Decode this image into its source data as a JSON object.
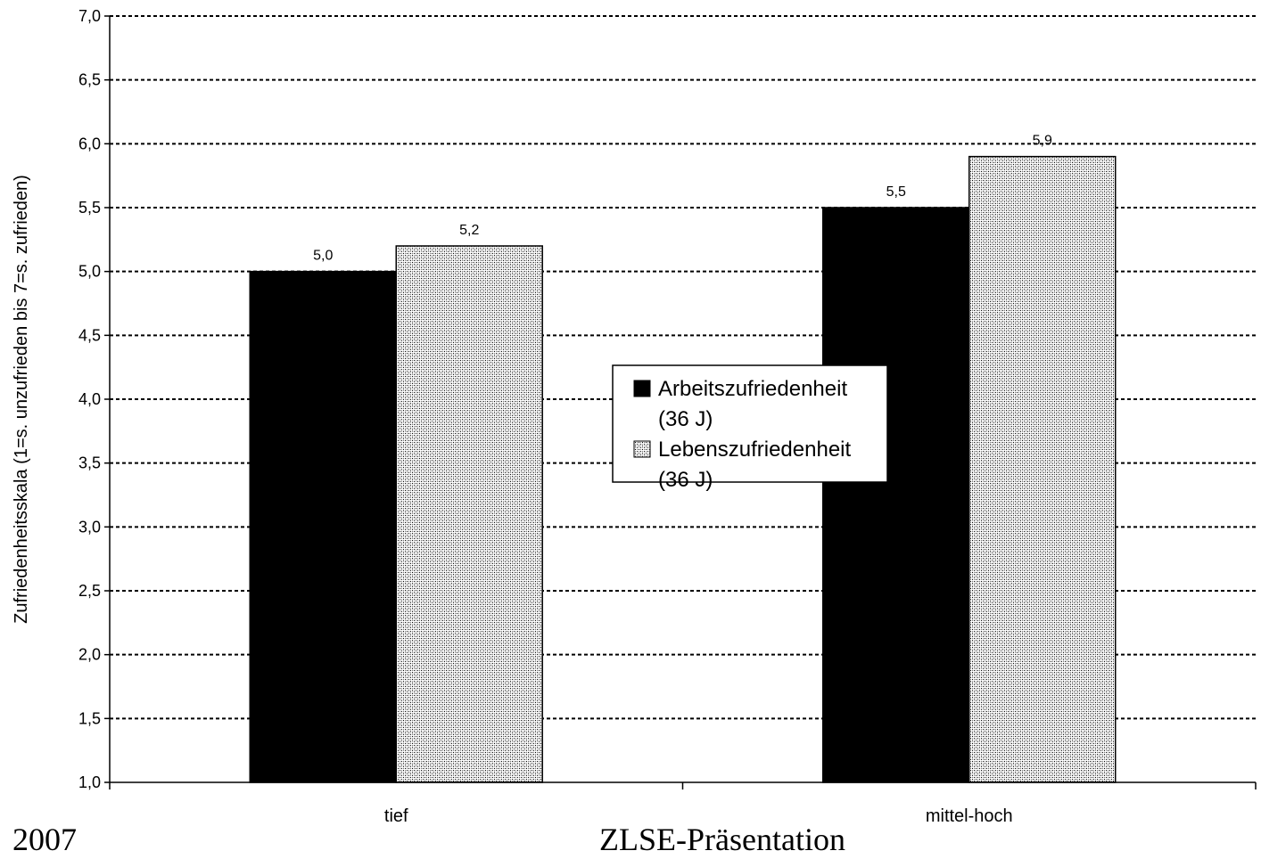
{
  "footer": {
    "left": "2007",
    "center": "ZLSE-Präsentation"
  },
  "chart_data": {
    "type": "bar",
    "title": "",
    "xlabel": "",
    "ylabel": "Zufriedenheitsskala (1=s. unzufrieden bis 7=s. zufrieden)",
    "categories": [
      "tief",
      "mittel-hoch"
    ],
    "series": [
      {
        "name": "Arbeitszufriedenheit (36 J)",
        "values": [
          5.0,
          5.5
        ],
        "labels": [
          "5,0",
          "5,5"
        ],
        "fill": "solid",
        "color": "#000000"
      },
      {
        "name": "Lebenszufriedenheit (36 J)",
        "values": [
          5.2,
          5.9
        ],
        "labels": [
          "5,2",
          "5,9"
        ],
        "fill": "dotted",
        "color": "#d9d9d9"
      }
    ],
    "legend_lines": [
      [
        "Arbeitszufriedenheit",
        "(36 J)"
      ],
      [
        "Lebenszufriedenheit",
        "(36 J)"
      ]
    ],
    "ylim": [
      1.0,
      7.0
    ],
    "yticks": [
      1.0,
      1.5,
      2.0,
      2.5,
      3.0,
      3.5,
      4.0,
      4.5,
      5.0,
      5.5,
      6.0,
      6.5,
      7.0
    ],
    "ytick_labels": [
      "1,0",
      "1,5",
      "2,0",
      "2,5",
      "3,0",
      "3,5",
      "4,0",
      "4,5",
      "5,0",
      "5,5",
      "6,0",
      "6,5",
      "7,0"
    ],
    "grid": "horizontal dotted",
    "legend_position": "center"
  }
}
